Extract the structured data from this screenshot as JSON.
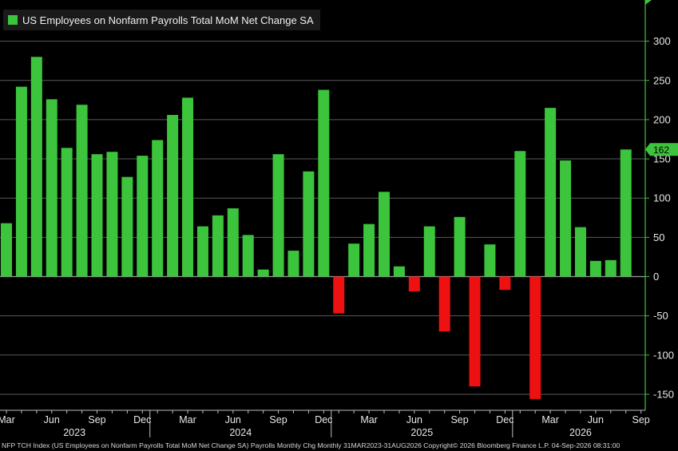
{
  "chart_data": {
    "type": "bar",
    "title": "US Employees on Nonfarm Payrolls Total MoM Net Change SA",
    "series": [
      {
        "name": "US Employees on Nonfarm Payrolls Total MoM Net Change SA",
        "values": [
          68,
          242,
          280,
          226,
          164,
          219,
          156,
          159,
          127,
          154,
          174,
          206,
          228,
          64,
          78,
          87,
          53,
          9,
          156,
          33,
          134,
          238,
          -47,
          42,
          67,
          108,
          13,
          -19,
          64,
          -70,
          76,
          -140,
          41,
          -17,
          160,
          -156,
          215,
          148,
          63,
          20,
          21,
          162
        ]
      }
    ],
    "positive_color": "#3cc43c",
    "negative_color": "#ee1111",
    "ylim": [
      -160,
      350
    ],
    "yticks": [
      300,
      250,
      200,
      150,
      100,
      50,
      0,
      -50,
      -100,
      -150
    ],
    "month_labels": [
      "Mar",
      "Jun",
      "Sep",
      "Dec",
      "Mar",
      "Jun",
      "Sep",
      "Dec",
      "Mar",
      "Jun",
      "Sep",
      "Dec",
      "Mar",
      "Jun",
      "Sep"
    ],
    "year_labels": [
      "2023",
      "2024",
      "2025",
      "2026"
    ],
    "last_value_label": "162",
    "grid": true
  },
  "footer": "NFP TCH Index (US Employees on Nonfarm Payrolls Total MoM Net Change SA) Payrolls Monthly Chg Monthly 31MAR2023-31AUG2026 Copyright© 2026 Bloomberg Finance L.P.   04-Sep-2026 08:31:00"
}
